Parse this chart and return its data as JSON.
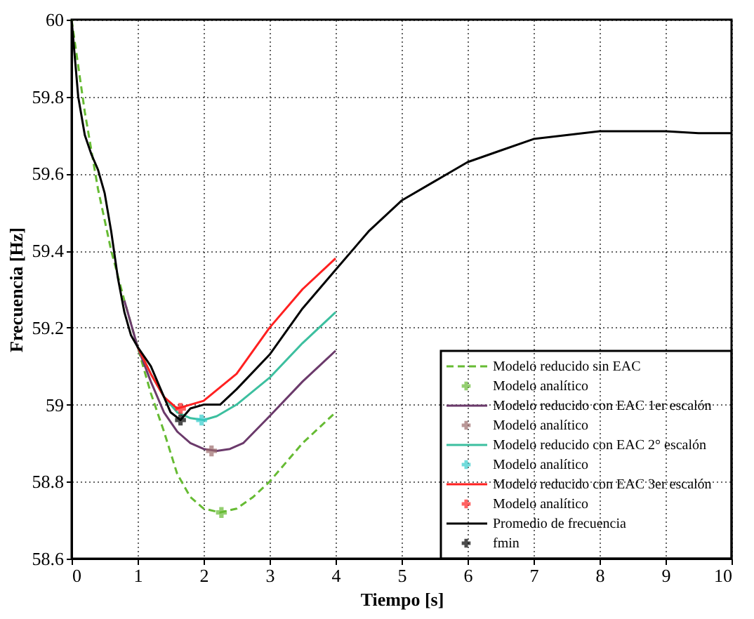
{
  "chart_data": {
    "type": "line",
    "xlabel": "Tiempo  [s]",
    "ylabel": "Frecuencia  [Hz]",
    "xlim": [
      0,
      10
    ],
    "ylim": [
      58.6,
      60
    ],
    "xticks": [
      0,
      1,
      2,
      3,
      4,
      5,
      6,
      7,
      8,
      9,
      10
    ],
    "yticks": [
      58.6,
      58.8,
      59,
      59.2,
      59.4,
      59.6,
      59.8,
      60
    ],
    "grid": true,
    "legend": "bottom right",
    "series": [
      {
        "name": "Modelo reducido sin EAC",
        "line_style": "dashed",
        "color": "#66bb33",
        "x": [
          0,
          0.1,
          0.2,
          0.3,
          0.4,
          0.6,
          0.8,
          1.0,
          1.2,
          1.4,
          1.6,
          1.8,
          2.0,
          2.25,
          2.5,
          2.75,
          3.0,
          3.25,
          3.5,
          3.75,
          4.0
        ],
        "values": [
          60,
          59.88,
          59.76,
          59.66,
          59.56,
          59.4,
          59.27,
          59.15,
          59.03,
          58.93,
          58.82,
          58.76,
          58.73,
          58.72,
          58.73,
          58.76,
          58.8,
          58.85,
          58.9,
          58.94,
          58.98
        ]
      },
      {
        "name": "Modelo analítico",
        "type": "scatter",
        "marker": "cross",
        "color": "#66bb33",
        "x": [
          2.27
        ],
        "values": [
          58.72
        ]
      },
      {
        "name": "Modelo reducido con EAC 1er escalón",
        "line_style": "solid",
        "color": "#6b3a6b",
        "x": [
          0.8,
          1.0,
          1.2,
          1.4,
          1.6,
          1.8,
          2.0,
          2.2,
          2.4,
          2.6,
          3.0,
          3.5,
          4.0
        ],
        "values": [
          59.27,
          59.15,
          59.06,
          58.98,
          58.93,
          58.9,
          58.885,
          58.88,
          58.885,
          58.9,
          58.97,
          59.06,
          59.14
        ]
      },
      {
        "name": "Modelo analítico",
        "type": "scatter",
        "marker": "cross",
        "color": "#9b6b6b",
        "x": [
          2.12
        ],
        "values": [
          58.88
        ]
      },
      {
        "name": "Modelo reducido con EAC 2° escalón",
        "line_style": "solid",
        "color": "#3cbf9f",
        "x": [
          1.0,
          1.2,
          1.4,
          1.6,
          1.8,
          2.0,
          2.2,
          2.5,
          3.0,
          3.5,
          4.0
        ],
        "values": [
          59.15,
          59.08,
          59.02,
          58.98,
          58.965,
          58.96,
          58.97,
          59.0,
          59.07,
          59.16,
          59.24
        ]
      },
      {
        "name": "Modelo analítico",
        "type": "scatter",
        "marker": "cross",
        "color": "#33cccc",
        "x": [
          1.97
        ],
        "values": [
          58.96
        ]
      },
      {
        "name": "Modelo reducido con EAC 3er escalón",
        "line_style": "solid",
        "color": "#ff2020",
        "x": [
          1.0,
          1.2,
          1.4,
          1.6,
          1.8,
          2.0,
          2.5,
          3.0,
          3.5,
          4.0
        ],
        "values": [
          59.15,
          59.08,
          59.02,
          58.99,
          59.0,
          59.01,
          59.08,
          59.2,
          59.3,
          59.38
        ]
      },
      {
        "name": "Modelo analítico",
        "type": "scatter",
        "marker": "cross",
        "color": "#ff2020",
        "x": [
          1.65
        ],
        "values": [
          58.99
        ]
      },
      {
        "name": "Promedio de frecuencia",
        "line_style": "solid",
        "color": "#000000",
        "x": [
          0,
          0.05,
          0.1,
          0.2,
          0.3,
          0.4,
          0.5,
          0.6,
          0.7,
          0.8,
          0.9,
          1.0,
          1.2,
          1.4,
          1.5,
          1.65,
          1.8,
          2.0,
          2.25,
          2.5,
          3.0,
          3.5,
          4.0,
          4.5,
          5.0,
          5.5,
          6.0,
          6.5,
          7.0,
          7.5,
          8.0,
          8.5,
          9.0,
          9.5,
          10
        ],
        "values": [
          60,
          59.9,
          59.8,
          59.7,
          59.65,
          59.61,
          59.55,
          59.45,
          59.33,
          59.24,
          59.18,
          59.15,
          59.1,
          59.02,
          58.98,
          58.96,
          58.99,
          59.0,
          59.0,
          59.04,
          59.13,
          59.25,
          59.35,
          59.45,
          59.53,
          59.58,
          59.63,
          59.66,
          59.69,
          59.7,
          59.71,
          59.71,
          59.71,
          59.705,
          59.705
        ]
      },
      {
        "name": "fmin",
        "type": "scatter",
        "marker": "cross",
        "color": "#000000",
        "x": [
          1.65
        ],
        "values": [
          58.96
        ]
      }
    ]
  }
}
